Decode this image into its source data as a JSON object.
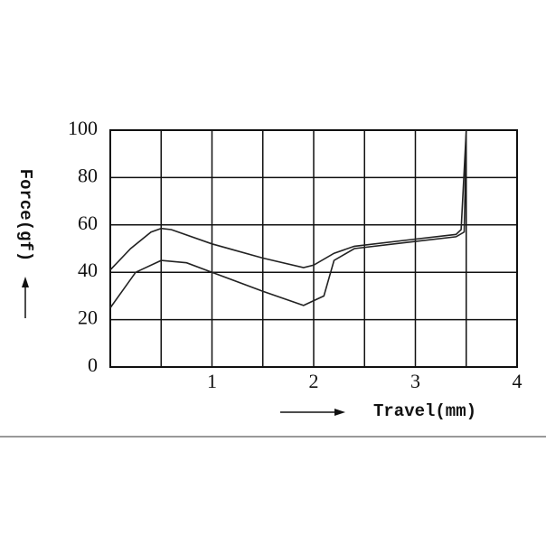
{
  "chart_data": {
    "type": "line",
    "x_label": "Travel(mm)",
    "y_label": "Force(gf)",
    "xlim": [
      0,
      4
    ],
    "xticks": [
      1,
      2,
      3,
      4
    ],
    "xminor": [
      0.5,
      1.5,
      2.5,
      3.5
    ],
    "ylim": [
      0,
      100
    ],
    "yticks": [
      0,
      20,
      40,
      60,
      80,
      100
    ],
    "grid": true,
    "series": [
      {
        "color": "#222222",
        "x": [
          0,
          0.2,
          0.4,
          0.5,
          0.6,
          1.0,
          1.5,
          1.9,
          2.0,
          2.2,
          2.4,
          3.0,
          3.4,
          3.45,
          3.5
        ],
        "values": [
          41,
          50,
          57,
          58.5,
          58,
          52,
          46,
          42,
          43,
          48,
          51,
          54,
          56,
          58,
          100
        ]
      },
      {
        "color": "#222222",
        "x": [
          0,
          0.25,
          0.5,
          0.75,
          1.0,
          1.5,
          1.9,
          2.0,
          2.1,
          2.2,
          2.4,
          3.0,
          3.4,
          3.48,
          3.5
        ],
        "values": [
          25,
          40,
          45,
          44,
          40,
          32,
          26,
          28,
          30,
          45,
          50,
          53,
          55,
          57,
          100
        ]
      }
    ]
  }
}
